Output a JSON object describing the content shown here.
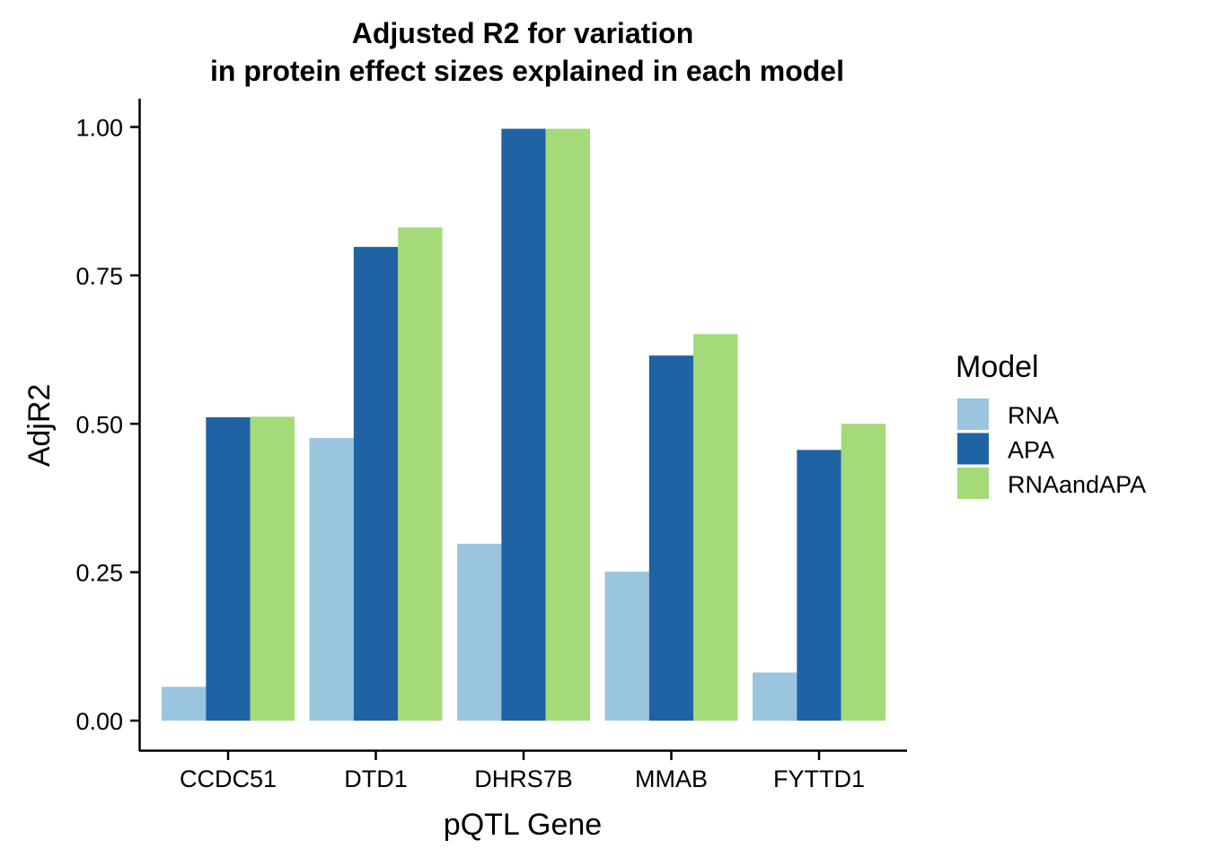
{
  "chart_data": {
    "type": "bar",
    "title": "Adjusted R2 for variation",
    "subtitle": "in protein effect sizes explained in each model",
    "xlabel": "pQTL Gene",
    "ylabel": "AdjR2",
    "ylim": [
      0,
      1.05
    ],
    "yticks": [
      0,
      0.25,
      0.5,
      0.75,
      1.0
    ],
    "ytick_labels": [
      "0.00",
      "0.25",
      "0.50",
      "0.75",
      "1.00"
    ],
    "grid": false,
    "legend_position": "right",
    "legend_title": "Model",
    "categories": [
      "CCDC51",
      "DTD1",
      "DHRS7B",
      "MMAB",
      "FYTTD1"
    ],
    "series": [
      {
        "name": "RNA",
        "color": "#9ac5de",
        "values": [
          0.057,
          0.476,
          0.298,
          0.251,
          0.081
        ]
      },
      {
        "name": "APA",
        "color": "#1f63a5",
        "values": [
          0.511,
          0.798,
          0.997,
          0.615,
          0.456
        ]
      },
      {
        "name": "RNAandAPA",
        "color": "#a4da78",
        "values": [
          0.512,
          0.831,
          0.997,
          0.651,
          0.5
        ]
      }
    ]
  }
}
